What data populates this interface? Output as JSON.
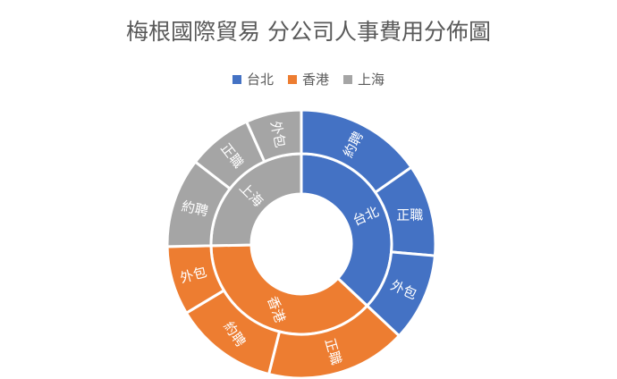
{
  "chart_data": {
    "type": "sunburst",
    "title": "梅根國際貿易 分公司人事費用分佈圖",
    "legend_position": "top",
    "series": [
      {
        "name": "台北",
        "color": "#4472C4",
        "children": [
          {
            "name": "約聘",
            "value": 15.3
          },
          {
            "name": "正職",
            "value": 11.1
          },
          {
            "name": "外包",
            "value": 10.6
          }
        ]
      },
      {
        "name": "香港",
        "color": "#ED7D31",
        "children": [
          {
            "name": "正職",
            "value": 16.9
          },
          {
            "name": "約聘",
            "value": 12.5
          },
          {
            "name": "外包",
            "value": 8.3
          }
        ]
      },
      {
        "name": "上海",
        "color": "#A5A5A5",
        "children": [
          {
            "name": "約聘",
            "value": 10.8
          },
          {
            "name": "正職",
            "value": 7.8
          },
          {
            "name": "外包",
            "value": 6.7
          }
        ]
      }
    ]
  }
}
